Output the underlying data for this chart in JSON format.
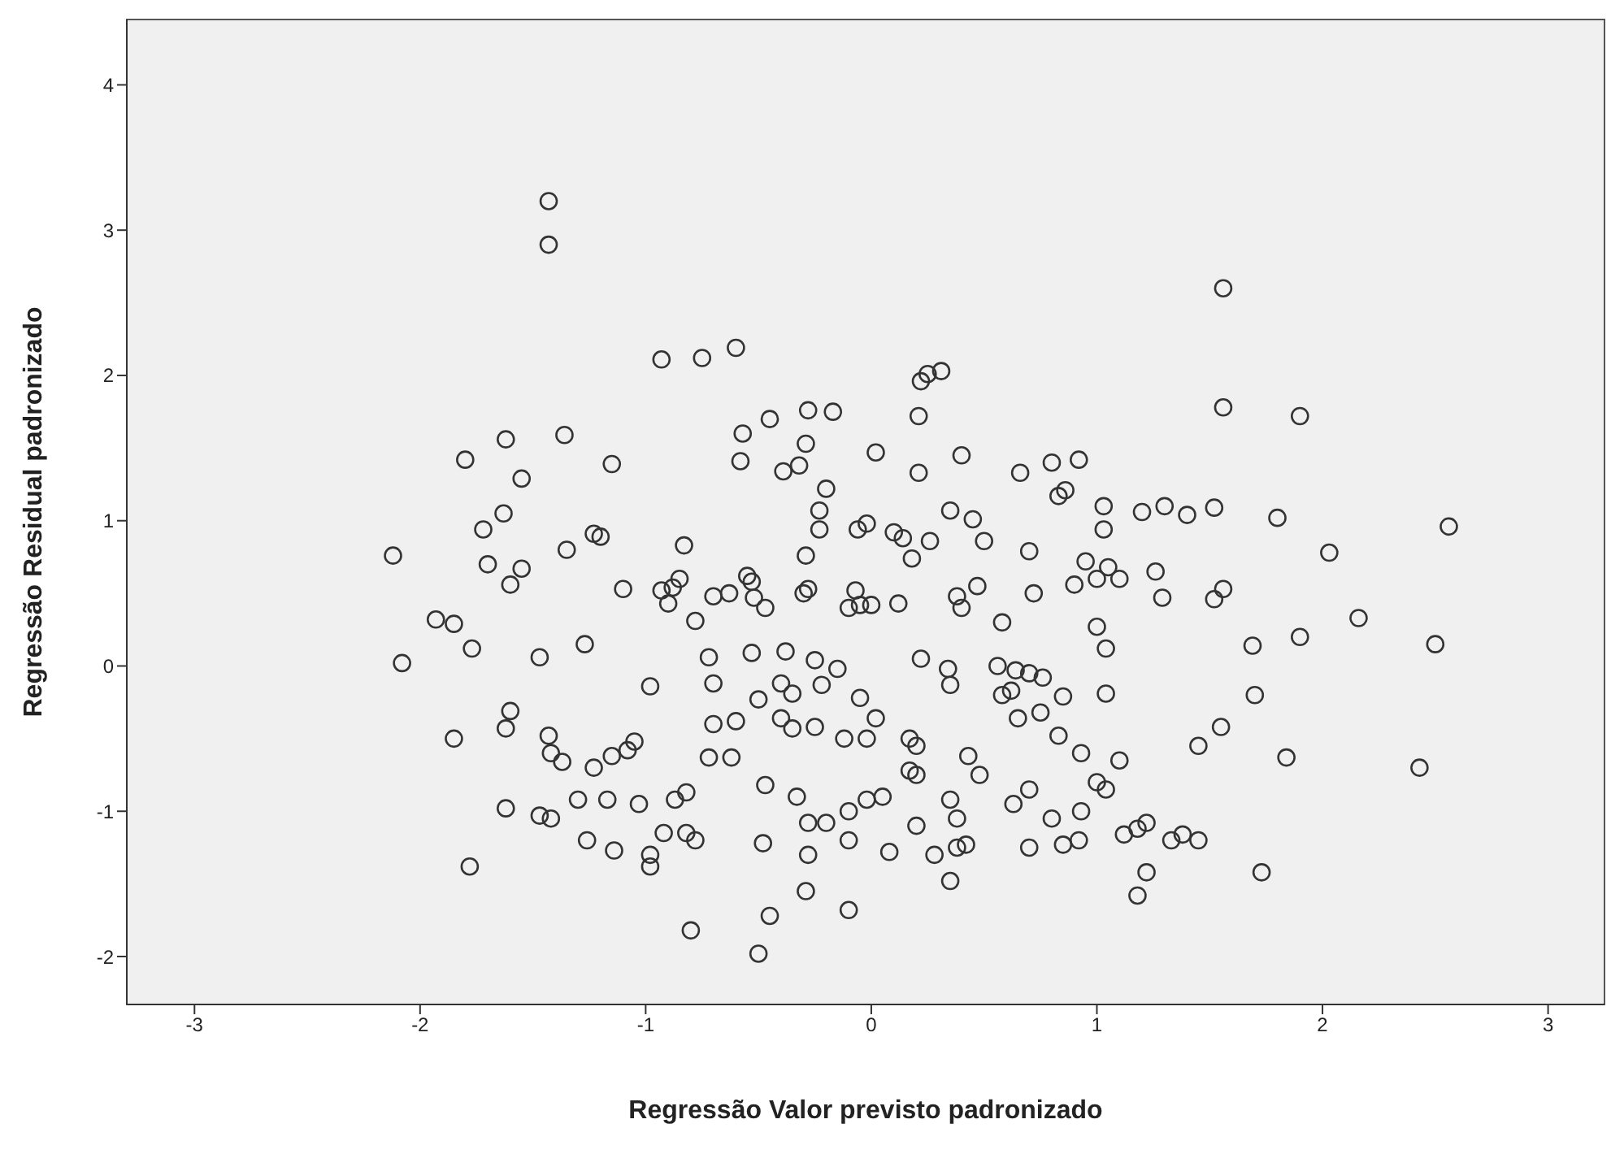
{
  "chart_data": {
    "type": "scatter",
    "xlabel": "Regressão Valor previsto padronizado",
    "ylabel": "Regressão Residual padronizado",
    "xlim": [
      -3.3,
      3.25
    ],
    "ylim": [
      -2.33,
      4.45
    ],
    "xticks": [
      -3,
      -2,
      -1,
      0,
      1,
      2,
      3
    ],
    "yticks": [
      -2,
      -1,
      0,
      1,
      2,
      3,
      4
    ],
    "marker": "circle",
    "series": [
      {
        "color": "#333333",
        "x": [
          -1.43,
          -1.43,
          1.56,
          -0.93,
          -0.75,
          -0.6,
          0.22,
          0.25,
          0.31,
          -0.28,
          -0.17,
          0.21,
          -0.45,
          1.56,
          1.9,
          -1.62,
          -1.36,
          -0.57,
          0.02,
          -1.8,
          -0.58,
          -0.29,
          -0.39,
          -0.32,
          0.21,
          0.4,
          0.66,
          0.8,
          0.92,
          -1.55,
          -1.15,
          -0.2,
          0.86,
          0.83,
          1.03,
          1.2,
          1.3,
          1.4,
          1.52,
          1.8,
          -1.63,
          -1.72,
          -0.23,
          0.35,
          0.45,
          -0.02,
          -0.06,
          -0.23,
          0.1,
          0.14,
          0.5,
          0.26,
          1.03,
          -1.23,
          -1.2,
          -0.83,
          -1.35,
          -0.29,
          0.18,
          0.7,
          0.95,
          1.05,
          2.03,
          2.56,
          -2.12,
          -1.7,
          -1.55,
          -0.85,
          -0.55,
          -0.53,
          -0.93,
          -0.88,
          -1.1,
          -1.6,
          -0.7,
          -0.63,
          -0.52,
          -0.47,
          -0.3,
          -0.28,
          -0.07,
          0.12,
          0.38,
          0.4,
          0.47,
          0.58,
          0.72,
          0.9,
          1.0,
          1.1,
          1.26,
          1.29,
          1.52,
          1.56,
          2.16,
          -0.9,
          -0.78,
          -0.53,
          -0.05,
          0.0,
          -0.1,
          -1.93,
          -1.85,
          -1.77,
          -2.08,
          -1.47,
          -1.27,
          -0.72,
          -0.38,
          -0.25,
          -0.15,
          0.22,
          0.34,
          0.56,
          0.64,
          0.7,
          0.76,
          1.0,
          1.04,
          1.69,
          1.9,
          2.5,
          -0.98,
          -0.7,
          -0.5,
          -0.4,
          -0.35,
          -0.22,
          -0.05,
          0.02,
          0.35,
          0.58,
          0.62,
          0.85,
          1.04,
          1.7,
          -1.6,
          -1.62,
          -1.43,
          -1.42,
          -1.37,
          -1.15,
          -1.23,
          -1.05,
          -1.08,
          -0.7,
          -0.6,
          -0.4,
          -0.35,
          -0.25,
          -0.12,
          -0.02,
          0.17,
          0.2,
          0.17,
          0.43,
          0.65,
          0.75,
          0.83,
          0.93,
          1.1,
          1.45,
          1.55,
          1.84,
          -1.85,
          -1.62,
          -1.47,
          -1.42,
          -1.3,
          -1.17,
          -1.03,
          -0.87,
          -0.82,
          -0.92,
          -0.72,
          -0.62,
          -0.47,
          -0.33,
          -0.28,
          -0.2,
          -0.1,
          -0.02,
          0.05,
          0.2,
          0.35,
          0.38,
          0.48,
          0.63,
          0.7,
          0.8,
          0.93,
          1.0,
          1.04,
          1.18,
          1.22,
          1.33,
          1.38,
          1.45,
          -1.26,
          -1.14,
          -0.98,
          -0.82,
          -0.78,
          -0.48,
          -0.28,
          -0.1,
          0.08,
          0.28,
          0.38,
          0.42,
          0.7,
          0.85,
          0.92,
          1.12,
          1.22,
          1.18,
          1.73,
          2.43,
          -1.78,
          -0.98,
          -0.8,
          -0.45,
          -0.5,
          -0.1,
          -0.29,
          0.35,
          0.2
        ],
        "values": [
          3.2,
          2.9,
          2.6,
          2.11,
          2.12,
          2.19,
          1.96,
          2.01,
          2.03,
          1.76,
          1.75,
          1.72,
          1.7,
          1.78,
          1.72,
          1.56,
          1.59,
          1.6,
          1.47,
          1.42,
          1.41,
          1.53,
          1.34,
          1.38,
          1.33,
          1.45,
          1.33,
          1.4,
          1.42,
          1.29,
          1.39,
          1.22,
          1.21,
          1.17,
          1.1,
          1.06,
          1.1,
          1.04,
          1.09,
          1.02,
          1.05,
          0.94,
          1.07,
          1.07,
          1.01,
          0.98,
          0.94,
          0.94,
          0.92,
          0.88,
          0.86,
          0.86,
          0.94,
          0.91,
          0.89,
          0.83,
          0.8,
          0.76,
          0.74,
          0.79,
          0.72,
          0.68,
          0.78,
          0.96,
          0.76,
          0.7,
          0.67,
          0.6,
          0.62,
          0.58,
          0.52,
          0.54,
          0.53,
          0.56,
          0.48,
          0.5,
          0.47,
          0.4,
          0.5,
          0.53,
          0.52,
          0.43,
          0.48,
          0.4,
          0.55,
          0.3,
          0.5,
          0.56,
          0.6,
          0.6,
          0.65,
          0.47,
          0.46,
          0.53,
          0.33,
          0.43,
          0.31,
          0.09,
          0.42,
          0.42,
          0.4,
          0.32,
          0.29,
          0.12,
          0.02,
          0.06,
          0.15,
          0.06,
          0.1,
          0.04,
          -0.02,
          0.05,
          -0.02,
          0.0,
          -0.03,
          -0.05,
          -0.08,
          0.27,
          0.12,
          0.14,
          0.2,
          0.15,
          -0.14,
          -0.12,
          -0.23,
          -0.12,
          -0.19,
          -0.13,
          -0.22,
          -0.36,
          -0.13,
          -0.2,
          -0.17,
          -0.21,
          -0.19,
          -0.2,
          -0.31,
          -0.43,
          -0.48,
          -0.6,
          -0.66,
          -0.62,
          -0.7,
          -0.52,
          -0.58,
          -0.4,
          -0.38,
          -0.36,
          -0.43,
          -0.42,
          -0.5,
          -0.5,
          -0.5,
          -0.55,
          -0.72,
          -0.62,
          -0.36,
          -0.32,
          -0.48,
          -0.6,
          -0.65,
          -0.55,
          -0.42,
          -0.63,
          -0.5,
          -0.98,
          -1.03,
          -1.05,
          -0.92,
          -0.92,
          -0.95,
          -0.92,
          -0.87,
          -1.15,
          -0.63,
          -0.63,
          -0.82,
          -0.9,
          -1.08,
          -1.08,
          -1.0,
          -0.92,
          -0.9,
          -0.75,
          -0.92,
          -1.05,
          -0.75,
          -0.95,
          -0.85,
          -1.05,
          -1.0,
          -0.8,
          -0.85,
          -1.12,
          -1.08,
          -1.2,
          -1.16,
          -1.2,
          -1.2,
          -1.27,
          -1.3,
          -1.15,
          -1.2,
          -1.22,
          -1.3,
          -1.2,
          -1.28,
          -1.3,
          -1.25,
          -1.23,
          -1.25,
          -1.23,
          -1.2,
          -1.16,
          -1.42,
          -1.58,
          -1.42,
          -0.7,
          -1.38,
          -1.38,
          -1.82,
          -1.72,
          -1.98,
          -1.68,
          -1.55,
          -1.48,
          -1.1
        ]
      }
    ]
  }
}
